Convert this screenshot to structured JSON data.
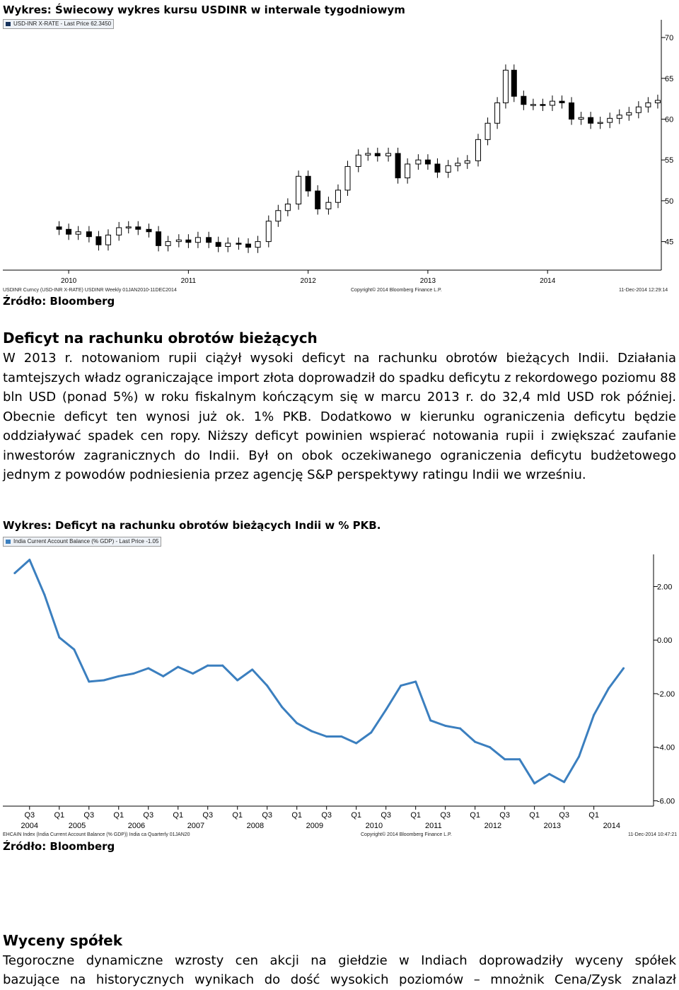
{
  "chart1": {
    "caption": "Wykres: Świecowy wykres kursu USDINR w interwale tygodniowym",
    "legend": "USD-INR X-RATE - Last Price 62.3450",
    "source": "Źródło: Bloomberg",
    "footer_left": "USDINR Curncy (USD-INR X-RATE) USDINR  Weekly 01JAN2010-11DEC2014",
    "footer_center": "Copyright© 2014 Bloomberg Finance L.P.",
    "footer_right": "11-Dec-2014 12:29:14",
    "accent_color": "#000000",
    "chart_data": {
      "type": "candlestick",
      "x_tick_labels": [
        "2010",
        "2011",
        "2012",
        "2013",
        "2014"
      ],
      "y_tick_labels": [
        "45",
        "50",
        "55",
        "60",
        "65",
        "70"
      ],
      "ylim": [
        41.5,
        72
      ],
      "xlim": [
        2010.0,
        2015.0
      ],
      "grid": false,
      "series": [
        {
          "name": "USD-INR X-RATE",
          "x": [
            2009.92,
            2010.0,
            2010.08,
            2010.17,
            2010.25,
            2010.33,
            2010.42,
            2010.5,
            2010.58,
            2010.67,
            2010.75,
            2010.83,
            2010.92,
            2011.0,
            2011.08,
            2011.17,
            2011.25,
            2011.33,
            2011.42,
            2011.5,
            2011.58,
            2011.67,
            2011.75,
            2011.83,
            2011.92,
            2012.0,
            2012.08,
            2012.17,
            2012.25,
            2012.33,
            2012.42,
            2012.5,
            2012.58,
            2012.67,
            2012.75,
            2012.83,
            2012.92,
            2013.0,
            2013.08,
            2013.17,
            2013.25,
            2013.33,
            2013.42,
            2013.5,
            2013.58,
            2013.65,
            2013.72,
            2013.8,
            2013.88,
            2013.96,
            2014.04,
            2014.12,
            2014.2,
            2014.28,
            2014.36,
            2014.44,
            2014.52,
            2014.6,
            2014.68,
            2014.76,
            2014.84,
            2014.92
          ],
          "close": [
            46.5,
            45.9,
            46.2,
            45.6,
            44.6,
            45.8,
            46.7,
            46.8,
            46.5,
            46.2,
            44.5,
            45.0,
            45.2,
            44.9,
            45.5,
            44.9,
            44.4,
            44.8,
            44.7,
            44.3,
            45.0,
            47.5,
            48.8,
            49.6,
            53.0,
            51.2,
            49.0,
            49.8,
            51.3,
            54.2,
            55.6,
            55.8,
            55.5,
            55.8,
            52.8,
            54.5,
            55.0,
            54.5,
            53.5,
            54.3,
            54.6,
            54.9,
            57.5,
            59.5,
            62.0,
            66.0,
            62.8,
            61.8,
            61.8,
            61.7,
            62.2,
            62.0,
            60.0,
            60.2,
            59.5,
            59.6,
            60.1,
            60.5,
            60.8,
            61.5,
            62.0,
            62.3
          ]
        }
      ]
    }
  },
  "section1": {
    "heading": "Deficyt na rachunku obrotów bieżących",
    "text": "W 2013 r. notowaniom rupii ciążył wysoki deficyt na rachunku obrotów bieżących Indii. Działania tamtejszych władz ograniczające import złota doprowadził do spadku deficytu z rekordowego poziomu 88 bln USD (ponad 5%) w roku fiskalnym kończącym się w marcu 2013 r. do 32,4 mld USD rok później. Obecnie deficyt ten wynosi już ok. 1% PKB. Dodatkowo w kierunku ograniczenia deficytu będzie oddziaływać spadek cen ropy. Niższy deficyt powinien wspierać notowania rupii i zwiększać zaufanie inwestorów zagranicznych do Indii. Był on obok oczekiwanego ograniczenia deficytu budżetowego jednym z powodów podniesienia przez agencję S&P perspektywy ratingu Indii we wrześniu."
  },
  "chart2": {
    "caption": "Wykres: Deficyt na rachunku obrotów bieżących Indii w % PKB.",
    "legend": "India Current Account Balance (% GDP) - Last Price -1.05",
    "source": "Źródło: Bloomberg",
    "footer_left": "EHCAIN Index (India Current Account Balance (% GDP)) India ca  Quarterly 01JAN20",
    "footer_center": "Copyright© 2014 Bloomberg Finance L.P.",
    "footer_right": "11-Dec-2014 10:47:21",
    "line_color": "#3b7fbf",
    "chart_data": {
      "type": "line",
      "x_quarter_labels": [
        "Q3",
        "Q1",
        "Q3",
        "Q1",
        "Q3",
        "Q1",
        "Q3",
        "Q1",
        "Q3",
        "Q1",
        "Q3",
        "Q1",
        "Q3",
        "Q1",
        "Q3",
        "Q1",
        "Q3",
        "Q1",
        "Q3",
        "Q1"
      ],
      "x_year_labels": [
        "2004",
        "2005",
        "2006",
        "2007",
        "2008",
        "2009",
        "2010",
        "2011",
        "2012",
        "2013",
        "2014"
      ],
      "y_tick_labels": [
        "2.00",
        "0.00",
        "-2.00",
        "-4.00",
        "-6.00"
      ],
      "ylim": [
        -6.2,
        3.2
      ],
      "grid": false,
      "series": [
        {
          "name": "India Current Account Balance (% GDP)",
          "x": [
            "2004Q2",
            "2004Q3",
            "2004Q4",
            "2005Q1",
            "2005Q2",
            "2005Q3",
            "2005Q4",
            "2006Q1",
            "2006Q2",
            "2006Q3",
            "2006Q4",
            "2007Q1",
            "2007Q2",
            "2007Q3",
            "2007Q4",
            "2008Q1",
            "2008Q2",
            "2008Q3",
            "2008Q4",
            "2009Q1",
            "2009Q2",
            "2009Q3",
            "2009Q4",
            "2010Q1",
            "2010Q2",
            "2010Q3",
            "2010Q4",
            "2011Q1",
            "2011Q2",
            "2011Q3",
            "2011Q4",
            "2012Q1",
            "2012Q2",
            "2012Q3",
            "2012Q4",
            "2013Q1",
            "2013Q2",
            "2013Q3",
            "2013Q4",
            "2014Q1",
            "2014Q2",
            "2014Q3"
          ],
          "values": [
            2.5,
            3.0,
            1.7,
            0.1,
            -0.35,
            -1.55,
            -1.5,
            -1.35,
            -1.25,
            -1.05,
            -1.35,
            -1.0,
            -1.25,
            -0.95,
            -0.95,
            -1.5,
            -1.1,
            -1.7,
            -2.5,
            -3.1,
            -3.4,
            -3.6,
            -3.6,
            -3.85,
            -3.45,
            -2.6,
            -1.7,
            -1.55,
            -3.0,
            -3.2,
            -3.3,
            -3.8,
            -4.0,
            -4.45,
            -4.45,
            -5.35,
            -5.0,
            -5.3,
            -4.35,
            -2.8,
            -1.8,
            -1.05
          ]
        }
      ]
    }
  },
  "section2": {
    "heading": "Wyceny spółek",
    "line1": "Tegoroczne dynamiczne wzrosty cen akcji na giełdzie w Indiach doprowadziły wyceny spółek",
    "line2": "bazujące na historycznych wynikach do dość wysokich poziomów – mnożnik Cena/Zysk znalazł"
  }
}
